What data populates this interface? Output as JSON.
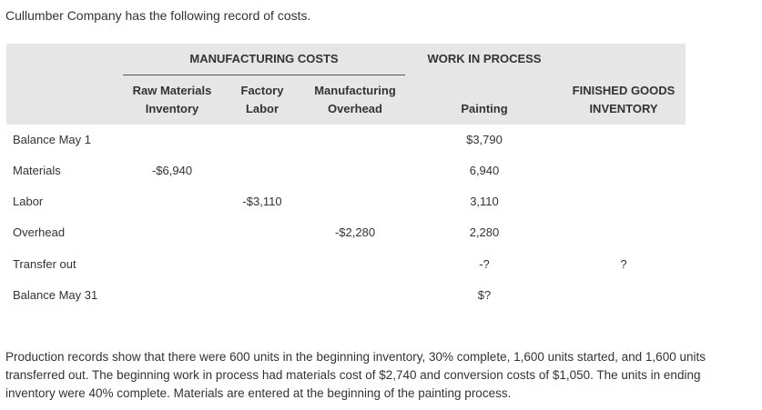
{
  "intro": "Cullumber Company has the following record of costs.",
  "header": {
    "manufacturing_costs": "MANUFACTURING COSTS",
    "work_in_process": "WORK IN PROCESS",
    "columns": {
      "raw_materials": [
        "Raw Materials",
        "Inventory"
      ],
      "factory_labor": [
        "Factory",
        "Labor"
      ],
      "manufacturing_overhead": [
        "Manufacturing",
        "Overhead"
      ],
      "painting": [
        "",
        "Painting"
      ],
      "finished_goods": [
        "FINISHED GOODS",
        "INVENTORY"
      ]
    }
  },
  "rows": [
    {
      "label": "Balance May 1",
      "raw": "",
      "labor": "",
      "overhead": "",
      "painting": "$3,790",
      "fg": ""
    },
    {
      "label": "Materials",
      "raw": "-$6,940",
      "labor": "",
      "overhead": "",
      "painting": "6,940",
      "fg": ""
    },
    {
      "label": "Labor",
      "raw": "",
      "labor": "-$3,110",
      "overhead": "",
      "painting": "3,110",
      "fg": ""
    },
    {
      "label": "Overhead",
      "raw": "",
      "labor": "",
      "overhead": "-$2,280",
      "painting": "2,280",
      "fg": ""
    },
    {
      "label": "Transfer out",
      "raw": "",
      "labor": "",
      "overhead": "",
      "painting": "-?",
      "fg": "?"
    },
    {
      "label": "Balance May 31",
      "raw": "",
      "labor": "",
      "overhead": "",
      "painting": "$?",
      "fg": ""
    }
  ],
  "footer": "Production records show that there were 600 units in the beginning inventory, 30% complete, 1,600 units started, and 1,600 units transferred out. The beginning work in process had materials cost of $2,740 and conversion costs of $1,050. The units in ending inventory were 40% complete. Materials are entered at the beginning of the painting process."
}
